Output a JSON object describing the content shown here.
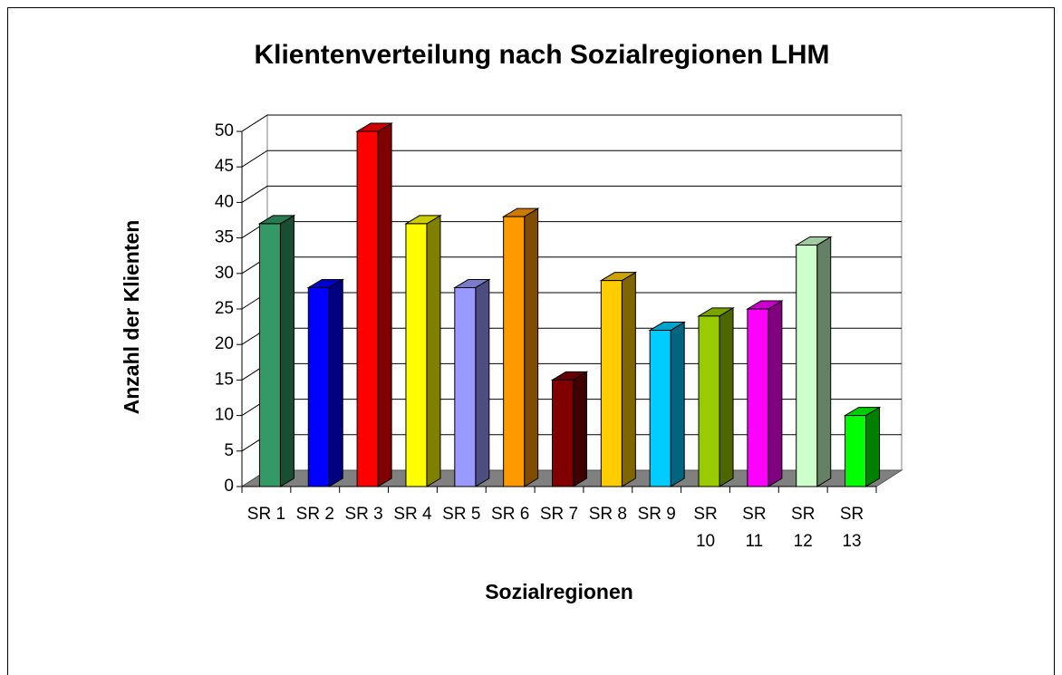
{
  "chart_data": {
    "type": "bar3d",
    "title": "Klientenverteilung nach Sozialregionen LHM",
    "x_label": "Sozialregionen",
    "y_label": "Anzahl der Klienten",
    "categories": [
      "SR 1",
      "SR 2",
      "SR 3",
      "SR 4",
      "SR 5",
      "SR 6",
      "SR 7",
      "SR 8",
      "SR 9",
      "SR 10",
      "SR 11",
      "SR 12",
      "SR 13"
    ],
    "values": [
      37,
      28,
      50,
      37,
      28,
      38,
      15,
      29,
      22,
      24,
      25,
      34,
      10
    ],
    "colors": [
      "#339966",
      "#0000ff",
      "#ff0000",
      "#ffff00",
      "#9999ff",
      "#ff9900",
      "#800000",
      "#ffcc00",
      "#00ccff",
      "#99cc00",
      "#ff00ff",
      "#ccffcc",
      "#00ff00"
    ],
    "ylim": [
      0,
      50
    ],
    "yticks": [
      0,
      5,
      10,
      15,
      20,
      25,
      30,
      35,
      40,
      45,
      50
    ],
    "grid": true
  }
}
